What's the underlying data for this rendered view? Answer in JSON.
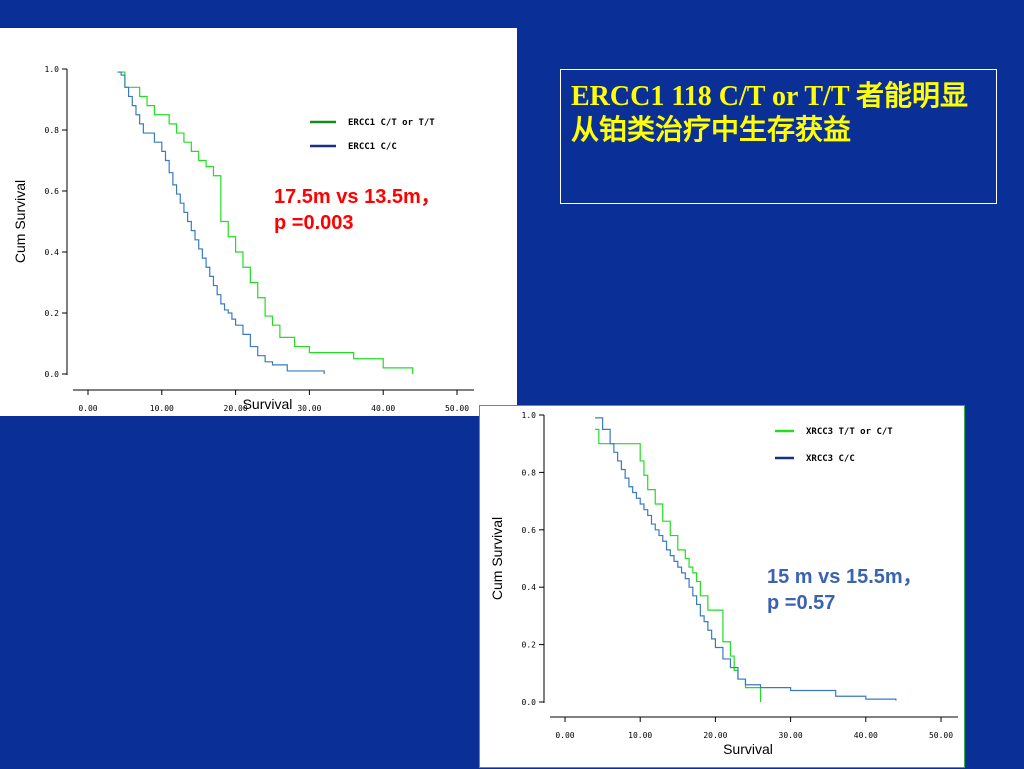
{
  "slide": {
    "title": "ERCC1 118 C/T or T/T 者能明显从铂类治疗中生存获益",
    "colors": {
      "background": "#0a2f96",
      "title": "#ffff00"
    }
  },
  "chart_data": [
    {
      "type": "line",
      "subtype": "kaplan-meier",
      "xlabel": "Survival",
      "ylabel": "Cum Survival",
      "xlim": [
        0,
        50
      ],
      "ylim": [
        0,
        1
      ],
      "xticks": [
        "0.00",
        "10.00",
        "20.00",
        "30.00",
        "40.00",
        "50.00"
      ],
      "yticks": [
        "0.0",
        "0.2",
        "0.4",
        "0.6",
        "0.8",
        "1.0"
      ],
      "legend_position": "top-right",
      "annotation": [
        "17.5m vs 13.5m，",
        "p =0.003"
      ],
      "annotation_color": "#ff0000",
      "series": [
        {
          "name": "ERCC1 C/T or T/T",
          "color": "#22dd22",
          "legend_color": "#1a8a1a",
          "x": [
            4,
            5,
            5,
            6,
            7,
            8,
            9,
            10,
            11,
            12,
            13,
            14,
            15,
            16,
            17,
            18,
            19,
            20,
            21,
            22,
            23,
            24,
            25,
            26,
            28,
            30,
            36,
            40,
            44
          ],
          "y": [
            0.99,
            0.97,
            0.94,
            0.94,
            0.91,
            0.88,
            0.85,
            0.85,
            0.82,
            0.79,
            0.76,
            0.73,
            0.7,
            0.68,
            0.65,
            0.5,
            0.45,
            0.4,
            0.35,
            0.3,
            0.25,
            0.19,
            0.16,
            0.12,
            0.09,
            0.07,
            0.05,
            0.02,
            0
          ]
        },
        {
          "name": "ERCC1 C/C",
          "color": "#3a7bbf",
          "legend_color": "#1a2e8a",
          "x": [
            4,
            4.5,
            5,
            5.5,
            6,
            6.5,
            7,
            7.5,
            8,
            9,
            10,
            10.5,
            11,
            11.5,
            12,
            12.5,
            13,
            13.5,
            14,
            14.5,
            15,
            15.5,
            16,
            16.5,
            17,
            17.5,
            18,
            18.5,
            19,
            19.5,
            20,
            21,
            22,
            23,
            24,
            25,
            27,
            32
          ],
          "y": [
            0.99,
            0.98,
            0.94,
            0.91,
            0.88,
            0.85,
            0.82,
            0.79,
            0.79,
            0.76,
            0.73,
            0.7,
            0.66,
            0.62,
            0.59,
            0.56,
            0.53,
            0.5,
            0.47,
            0.44,
            0.41,
            0.38,
            0.35,
            0.32,
            0.29,
            0.26,
            0.23,
            0.21,
            0.2,
            0.18,
            0.16,
            0.13,
            0.09,
            0.06,
            0.04,
            0.03,
            0.01,
            0
          ]
        }
      ]
    },
    {
      "type": "line",
      "subtype": "kaplan-meier",
      "xlabel": "Survival",
      "ylabel": "Cum Survival",
      "xlim": [
        0,
        50
      ],
      "ylim": [
        0,
        1
      ],
      "xticks": [
        "0.00",
        "10.00",
        "20.00",
        "30.00",
        "40.00",
        "50.00"
      ],
      "yticks": [
        "0.0",
        "0.2",
        "0.4",
        "0.6",
        "0.8",
        "1.0"
      ],
      "legend_position": "top-right",
      "annotation": [
        "15 m vs 15.5m，",
        "p =0.57"
      ],
      "annotation_color": "#3a62b0",
      "series": [
        {
          "name": "XRCC3 T/T or C/T",
          "color": "#22dd22",
          "legend_color": "#22dd22",
          "x": [
            4,
            4.5,
            5,
            10,
            10.5,
            11,
            12,
            13,
            14,
            15,
            16,
            16.5,
            17,
            17.5,
            18,
            19,
            19.5,
            20,
            21,
            22,
            22.5,
            23,
            24,
            26
          ],
          "y": [
            0.95,
            0.9,
            0.9,
            0.84,
            0.79,
            0.74,
            0.69,
            0.63,
            0.58,
            0.53,
            0.5,
            0.47,
            0.45,
            0.42,
            0.37,
            0.32,
            0.32,
            0.32,
            0.21,
            0.16,
            0.11,
            0.08,
            0.05,
            0
          ]
        },
        {
          "name": "XRCC3 C/C",
          "color": "#3a7bbf",
          "legend_color": "#1a2e8a",
          "x": [
            4,
            5,
            6,
            6.5,
            7,
            7.5,
            8,
            8.5,
            9,
            9.5,
            10,
            10.5,
            11,
            11.5,
            12,
            12.5,
            13,
            13.5,
            14,
            14.5,
            15,
            15.5,
            16,
            16.5,
            17,
            17.5,
            18,
            18.5,
            19,
            19.5,
            20,
            21,
            22,
            23,
            24,
            26,
            30,
            36,
            40,
            44
          ],
          "y": [
            0.99,
            0.95,
            0.9,
            0.87,
            0.84,
            0.81,
            0.78,
            0.75,
            0.73,
            0.71,
            0.69,
            0.67,
            0.65,
            0.62,
            0.6,
            0.58,
            0.56,
            0.53,
            0.51,
            0.49,
            0.47,
            0.45,
            0.43,
            0.4,
            0.37,
            0.34,
            0.3,
            0.28,
            0.25,
            0.22,
            0.19,
            0.15,
            0.12,
            0.08,
            0.06,
            0.05,
            0.04,
            0.02,
            0.01,
            0.005
          ]
        }
      ]
    }
  ]
}
